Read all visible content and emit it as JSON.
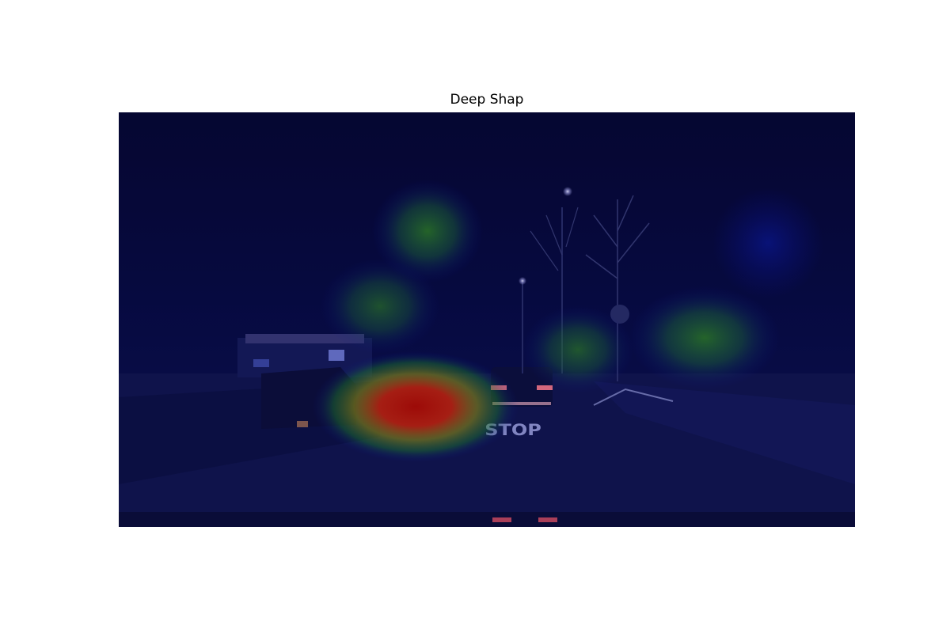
{
  "figure": {
    "title": "Deep Shap"
  },
  "image": {
    "road_marking_text": "STOP",
    "colors": {
      "background_tint": "#050728",
      "heat_low": "#0a0f8c",
      "heat_mid": "#1f8a2a",
      "heat_high": "#b01008"
    }
  }
}
